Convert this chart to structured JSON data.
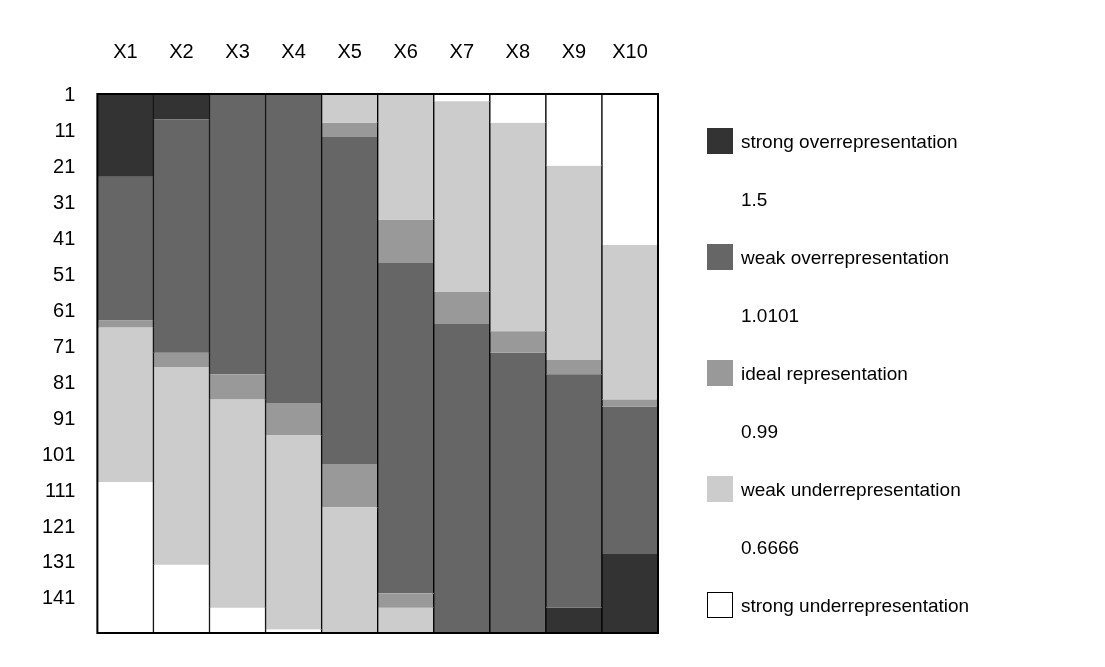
{
  "chart_data": {
    "type": "bar",
    "categories": [
      "X1",
      "X2",
      "X3",
      "X4",
      "X5",
      "X6",
      "X7",
      "X8",
      "X9",
      "X10"
    ],
    "ylim": [
      150.5,
      0.5
    ],
    "yticks": [
      1,
      11,
      21,
      31,
      41,
      51,
      61,
      71,
      81,
      91,
      101,
      111,
      121,
      131,
      141
    ],
    "legend": "right",
    "annotations": [
      "1.5",
      "1.0101",
      "0.99",
      "0.6666"
    ],
    "series": [
      {
        "name": "strong overrepresentation",
        "color": "#333333",
        "base": [
          0.5,
          0.5,
          null,
          null,
          null,
          null,
          null,
          null,
          143.5,
          128.5
        ],
        "values": [
          23,
          7,
          null,
          null,
          null,
          null,
          null,
          null,
          7,
          22
        ]
      },
      {
        "name": "weak overrepresentation",
        "color": "#666666",
        "base": [
          23.5,
          7.5,
          0.5,
          0.5,
          12.5,
          47.5,
          64.5,
          72.5,
          78.5,
          87.5
        ],
        "values": [
          40,
          65,
          78,
          86,
          91,
          92,
          86,
          78,
          65,
          41
        ]
      },
      {
        "name": "ideal representation",
        "color": "#999999",
        "base": [
          63.5,
          72.5,
          78.5,
          86.5,
          8.5,
          35.5,
          55.5,
          66.5,
          74.5,
          85.5
        ],
        "values": [
          2,
          4,
          7,
          9,
          4,
          12,
          9,
          6,
          4,
          2
        ]
      },
      {
        "name": "weak underrepresentation",
        "color": "#cccccc",
        "base": [
          65.5,
          76.5,
          85.5,
          95.5,
          0.5,
          0.5,
          2.5,
          8.5,
          20.5,
          42.5
        ],
        "values": [
          43,
          55,
          58,
          54,
          8,
          35,
          53,
          58,
          54,
          43
        ]
      },
      {
        "name": "strong underrepresentation",
        "color": "#ffffff",
        "base": [
          108.5,
          131.5,
          143.5,
          149.5,
          null,
          null,
          0.5,
          0.5,
          0.5,
          0.5
        ],
        "values": [
          42,
          19,
          7,
          1,
          null,
          null,
          2,
          8,
          20,
          42
        ]
      },
      {
        "color": "#999999",
        "base": [
          null,
          null,
          null,
          null,
          103.5,
          139.5,
          null,
          null,
          null,
          null
        ],
        "values": [
          null,
          null,
          null,
          null,
          12,
          4,
          null,
          null,
          null,
          null
        ]
      },
      {
        "color": "#cccccc",
        "base": [
          null,
          null,
          null,
          null,
          115.5,
          143.5,
          null,
          null,
          null,
          null
        ],
        "values": [
          null,
          null,
          null,
          null,
          35,
          7,
          null,
          null,
          null,
          null
        ]
      }
    ]
  }
}
